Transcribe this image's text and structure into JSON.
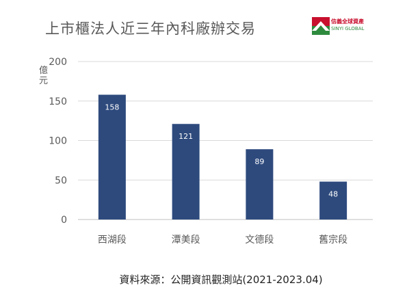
{
  "chart_data": {
    "type": "bar",
    "title": "上市櫃法人近三年內科廠辦交易",
    "ylabel": "億元",
    "categories": [
      "西湖段",
      "潭美段",
      "文德段",
      "舊宗段"
    ],
    "values": [
      158,
      121,
      89,
      48
    ],
    "ylim": [
      0,
      200
    ],
    "yticks": [
      0,
      50,
      100,
      150,
      200
    ],
    "grid": true,
    "bar_color": "#2e4a7d",
    "data_labels": [
      "158",
      "121",
      "89",
      "48"
    ]
  },
  "logo": {
    "text_zh": "信義全球資產",
    "text_en": "SINYI GLOBAL"
  },
  "source": "資料來源：公開資訊觀測站(2021-2023.04)"
}
